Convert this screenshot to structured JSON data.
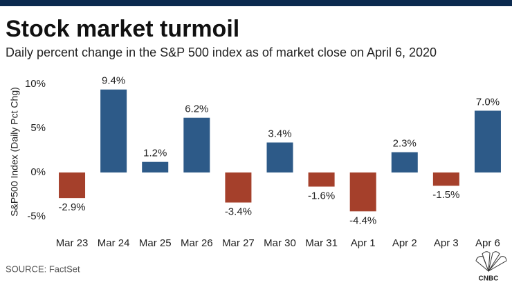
{
  "chart_data": {
    "type": "bar",
    "title": "Stock market turmoil",
    "subtitle": "Daily percent change in the S&P 500 index as of market close on April 6, 2020",
    "y_label": "S&P500 Index (Daily Pct Chg)",
    "source": "SOURCE: FactSet",
    "logo": "CNBC",
    "categories": [
      "Mar 23",
      "Mar 24",
      "Mar 25",
      "Mar 26",
      "Mar 27",
      "Mar 30",
      "Mar 31",
      "Apr 1",
      "Apr 2",
      "Apr 3",
      "Apr 6"
    ],
    "values": [
      -2.9,
      9.4,
      1.2,
      6.2,
      -3.4,
      3.4,
      -1.6,
      -4.4,
      2.3,
      -1.5,
      7.0
    ],
    "value_labels": [
      "-2.9%",
      "9.4%",
      "1.2%",
      "6.2%",
      "-3.4%",
      "3.4%",
      "-1.6%",
      "-4.4%",
      "2.3%",
      "-1.5%",
      "7.0%"
    ],
    "positive_color": "#2d5a88",
    "negative_color": "#a5402b",
    "ylim": [
      -6.25,
      11.1
    ],
    "yticks": [
      {
        "value": -5,
        "label": "-5%"
      },
      {
        "value": 0,
        "label": "0%"
      },
      {
        "value": 5,
        "label": "5%"
      },
      {
        "value": 10,
        "label": "10%"
      }
    ],
    "grid": false
  }
}
